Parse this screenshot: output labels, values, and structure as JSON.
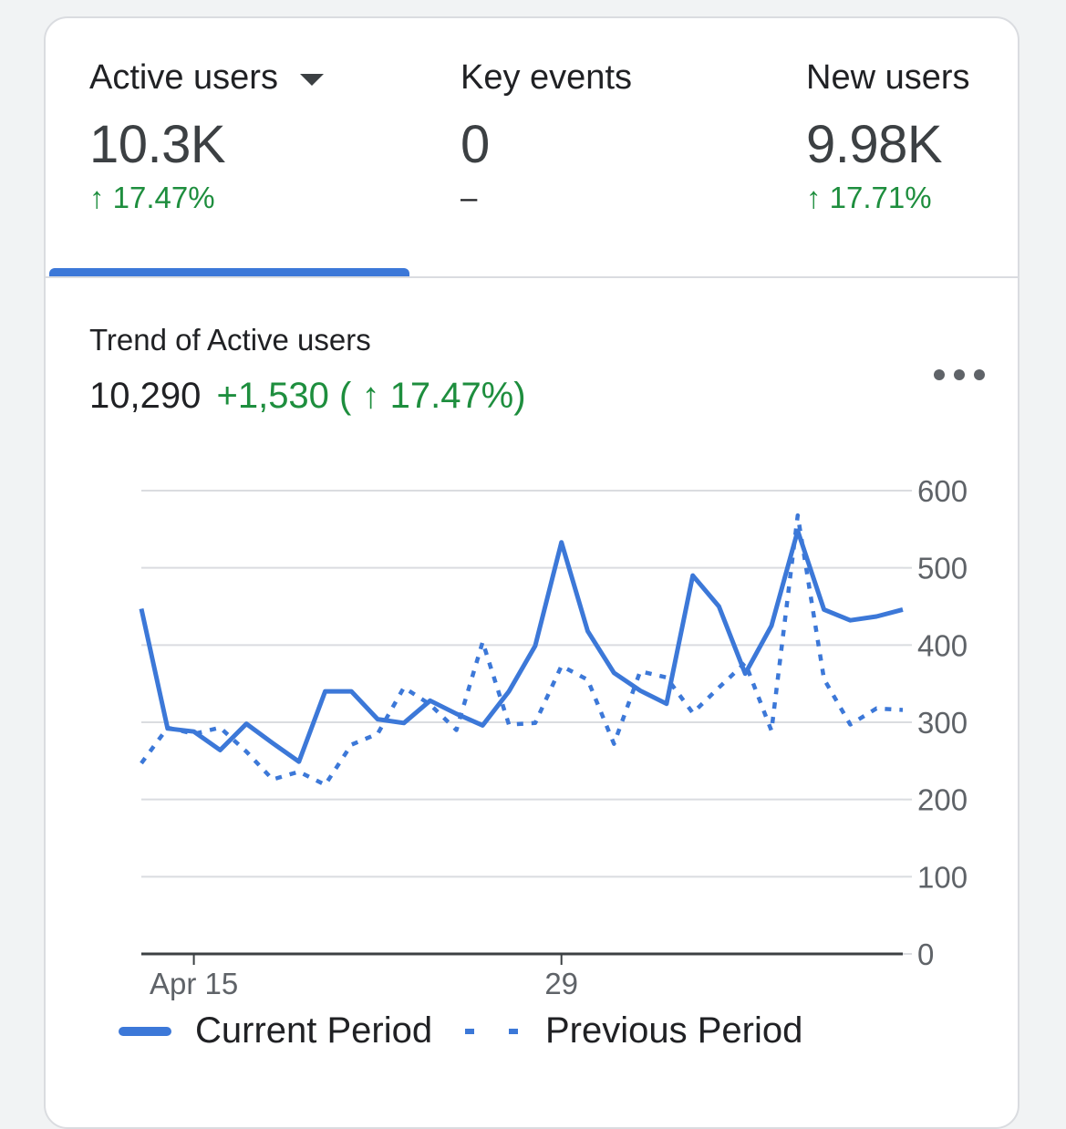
{
  "tabs": [
    {
      "label": "Active users",
      "value": "10.3K",
      "change": "↑ 17.47%",
      "has_dropdown": true,
      "selected": true
    },
    {
      "label": "Key events",
      "value": "0",
      "change": "–",
      "has_dropdown": false,
      "selected": false
    },
    {
      "label": "New users",
      "value": "9.98K",
      "change": "↑ 17.71%",
      "has_dropdown": false,
      "selected": false
    }
  ],
  "trend": {
    "title": "Trend of Active users",
    "total": "10,290",
    "delta": "+1,530 ( ↑ 17.47%)"
  },
  "colors": {
    "accent": "#3c78d8",
    "positive": "#1e8e3e",
    "grid": "#dadce0"
  },
  "icons": {
    "more": "more-horiz-icon",
    "dropdown": "arrow-drop-down-icon"
  },
  "chart_data": {
    "type": "line",
    "x": [
      "Apr 13",
      "Apr 14",
      "Apr 15",
      "Apr 16",
      "Apr 17",
      "Apr 18",
      "Apr 19",
      "Apr 20",
      "Apr 21",
      "Apr 22",
      "Apr 23",
      "Apr 24",
      "Apr 25",
      "Apr 26",
      "Apr 27",
      "Apr 28",
      "Apr 29",
      "Apr 30",
      "May 1",
      "May 2",
      "May 3",
      "May 4",
      "May 5",
      "May 6",
      "May 7",
      "May 8",
      "May 9",
      "May 10",
      "May 11",
      "May 12"
    ],
    "x_tick_labels": [
      {
        "x": "Apr 15",
        "label": "Apr 15"
      },
      {
        "x": "Apr 29",
        "label": "29"
      }
    ],
    "series": [
      {
        "name": "Current Period",
        "style": "solid",
        "values": [
          447,
          292,
          288,
          264,
          298,
          273,
          249,
          340,
          340,
          304,
          299,
          328,
          311,
          296,
          340,
          399,
          533,
          418,
          364,
          341,
          324,
          490,
          450,
          363,
          425,
          548,
          446,
          432,
          437,
          446
        ]
      },
      {
        "name": "Previous Period",
        "style": "dotted",
        "values": [
          247,
          293,
          285,
          293,
          262,
          226,
          236,
          219,
          271,
          285,
          345,
          323,
          290,
          404,
          297,
          299,
          373,
          355,
          272,
          366,
          358,
          312,
          345,
          377,
          289,
          568,
          356,
          297,
          318,
          316
        ]
      }
    ],
    "ylim": [
      0,
      600
    ],
    "yticks": [
      0,
      100,
      200,
      300,
      400,
      500,
      600
    ],
    "y_axis_side": "right",
    "grid": true,
    "legend_position": "bottom-left"
  }
}
